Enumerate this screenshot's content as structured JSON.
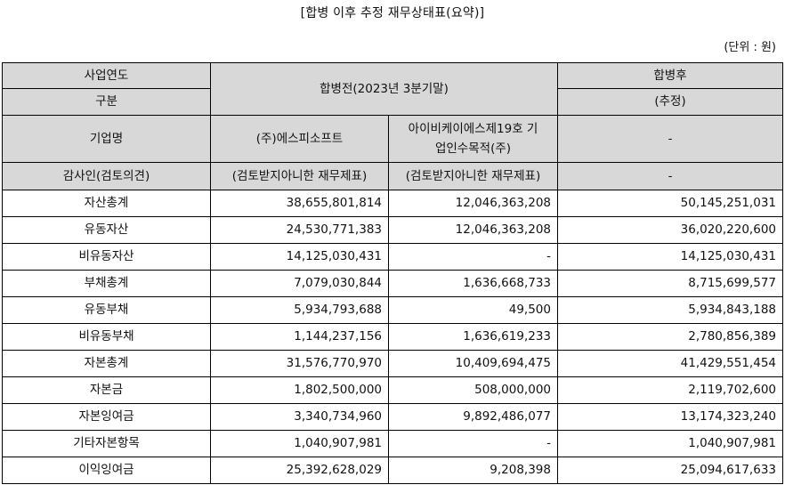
{
  "title": "[합병 이후 추정 재무상태표(요약)]",
  "unit": "(단위 : 원)",
  "header": {
    "year_label": "사업연도",
    "category_label": "구분",
    "pre_merger": "합병전(2023년 3분기말)",
    "post_merger": "합병후",
    "post_merger_sub": "(추정)",
    "company_label": "기업명",
    "company_a": "(주)에스피소프트",
    "company_b": "아이비케이에스제19호 기업인수목적(주)",
    "company_post": "-",
    "auditor_label": "감사인(검토의견)",
    "auditor_a": "(검토받지아니한 재무제표)",
    "auditor_b": "(검토받지아니한 재무제표)",
    "auditor_post": "-"
  },
  "rows": [
    {
      "label": "자산총계",
      "a": "38,655,801,814",
      "b": "12,046,363,208",
      "post": "50,145,251,031"
    },
    {
      "label": "유동자산",
      "a": "24,530,771,383",
      "b": "12,046,363,208",
      "post": "36,020,220,600"
    },
    {
      "label": "비유동자산",
      "a": "14,125,030,431",
      "b": "-",
      "post": "14,125,030,431"
    },
    {
      "label": "부채총계",
      "a": "7,079,030,844",
      "b": "1,636,668,733",
      "post": "8,715,699,577"
    },
    {
      "label": "유동부채",
      "a": "5,934,793,688",
      "b": "49,500",
      "post": "5,934,843,188"
    },
    {
      "label": "비유동부채",
      "a": "1,144,237,156",
      "b": "1,636,619,233",
      "post": "2,780,856,389"
    },
    {
      "label": "자본총계",
      "a": "31,576,770,970",
      "b": "10,409,694,475",
      "post": "41,429,551,454"
    },
    {
      "label": "자본금",
      "a": "1,802,500,000",
      "b": "508,000,000",
      "post": "2,119,702,600"
    },
    {
      "label": "자본잉여금",
      "a": "3,340,734,960",
      "b": "9,892,486,077",
      "post": "13,174,323,240"
    },
    {
      "label": "기타자본항목",
      "a": "1,040,907,981",
      "b": "-",
      "post": "1,040,907,981"
    },
    {
      "label": "이익잉여금",
      "a": "25,392,628,029",
      "b": "9,208,398",
      "post": "25,094,617,633"
    }
  ]
}
